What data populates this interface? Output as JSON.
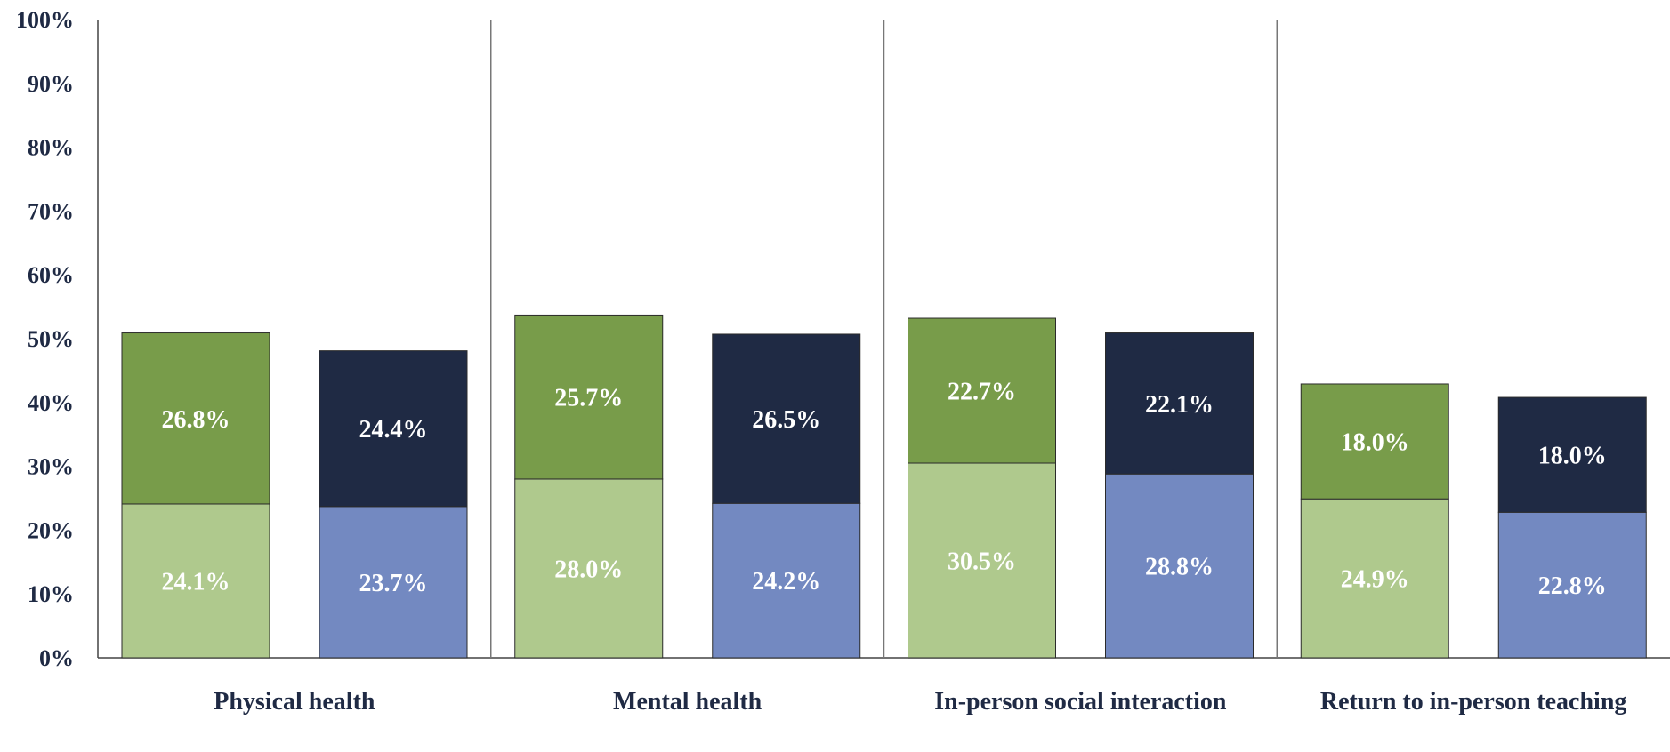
{
  "chart_data": {
    "type": "bar",
    "stacked": true,
    "categories": [
      "Physical health",
      "Mental health",
      "In-person social interaction",
      "Return to in-person teaching"
    ],
    "bars_per_category": 2,
    "series": [
      {
        "bar": 0,
        "segment": "bottom",
        "color": "#afc98d",
        "values": [
          24.1,
          28.0,
          30.5,
          24.9
        ]
      },
      {
        "bar": 0,
        "segment": "top",
        "color": "#789c4a",
        "values": [
          26.8,
          25.7,
          22.7,
          18.0
        ]
      },
      {
        "bar": 1,
        "segment": "bottom",
        "color": "#7389c1",
        "values": [
          23.7,
          24.2,
          28.8,
          22.8
        ]
      },
      {
        "bar": 1,
        "segment": "top",
        "color": "#1f2a44",
        "values": [
          24.4,
          26.5,
          22.1,
          18.0
        ]
      }
    ],
    "data_labels": [
      [
        "24.1%",
        "28.0%",
        "30.5%",
        "24.9%"
      ],
      [
        "26.8%",
        "25.7%",
        "22.7%",
        "18.0%"
      ],
      [
        "23.7%",
        "24.2%",
        "28.8%",
        "22.8%"
      ],
      [
        "24.4%",
        "26.5%",
        "22.1%",
        "18.0%"
      ]
    ],
    "y_ticks": [
      "0%",
      "10%",
      "20%",
      "30%",
      "40%",
      "50%",
      "60%",
      "70%",
      "80%",
      "90%",
      "100%"
    ],
    "ylim": [
      0,
      100
    ],
    "title": "",
    "xlabel": "",
    "ylabel": "",
    "grid": false,
    "category_separators": true
  }
}
